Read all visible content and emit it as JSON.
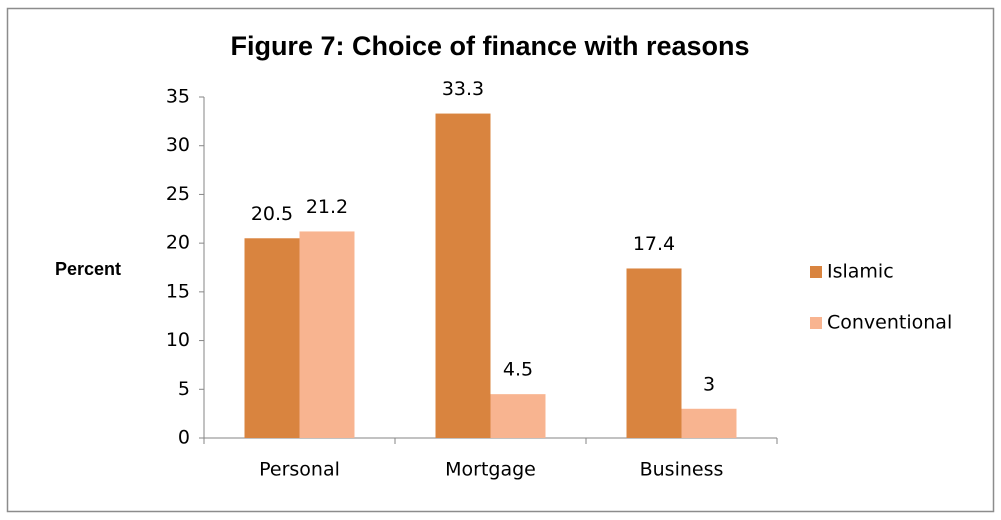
{
  "chart_data": {
    "type": "bar",
    "title": "Figure 7: Choice of finance with reasons",
    "y_label": "Percent",
    "categories": [
      "Personal",
      "Mortgage",
      "Business"
    ],
    "series": [
      {
        "name": "Islamic",
        "color": "#d9843f",
        "values": [
          20.5,
          33.3,
          17.4
        ]
      },
      {
        "name": "Conventional",
        "color": "#f8b490",
        "values": [
          21.2,
          4.5,
          3
        ]
      }
    ],
    "ylim": [
      0,
      35
    ],
    "yticks": [
      0,
      5,
      10,
      15,
      20,
      25,
      30,
      35
    ],
    "grid": false,
    "legend": "right"
  }
}
